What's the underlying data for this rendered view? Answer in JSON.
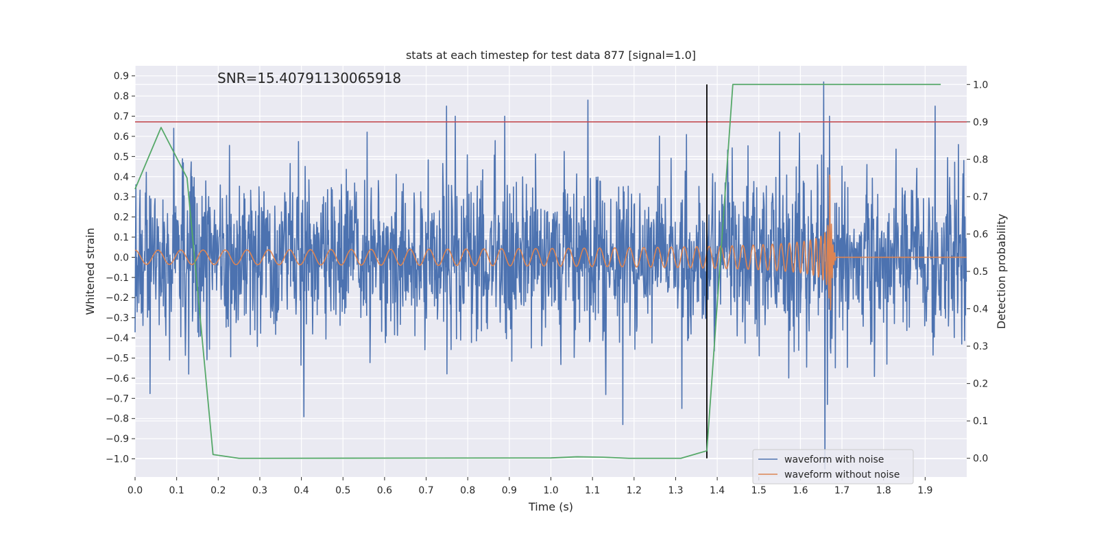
{
  "chart_data": {
    "type": "line",
    "title": "stats at each timestep for test data 877 [signal=1.0]",
    "xlabel": "Time (s)",
    "ylabel": "Whitened strain",
    "y2label": "Detection probability",
    "annotation": "SNR=15.40791130065918",
    "xlim": [
      0.0,
      2.0
    ],
    "ylim": [
      -1.09,
      0.95
    ],
    "y2lim": [
      -0.05,
      1.05
    ],
    "x_ticks": [
      0.0,
      0.1,
      0.2,
      0.3,
      0.4,
      0.5,
      0.6,
      0.7,
      0.8,
      0.9,
      1.0,
      1.1,
      1.2,
      1.3,
      1.4,
      1.5,
      1.6,
      1.7,
      1.8,
      1.9
    ],
    "x_tick_labels": [
      "0.0",
      "0.1",
      "0.2",
      "0.3",
      "0.4",
      "0.5",
      "0.6",
      "0.7",
      "0.8",
      "0.9",
      "1.0",
      "1.1",
      "1.2",
      "1.3",
      "1.4",
      "1.5",
      "1.6",
      "1.7",
      "1.8",
      "1.9"
    ],
    "y_ticks": [
      0.9,
      0.8,
      0.7,
      0.6,
      0.5,
      0.4,
      0.3,
      0.2,
      0.1,
      0.0,
      -0.1,
      -0.2,
      -0.3,
      -0.4,
      -0.5,
      -0.6,
      -0.7,
      -0.8,
      -0.9,
      -1.0
    ],
    "y_tick_labels": [
      "0.9",
      "0.8",
      "0.7",
      "0.6",
      "0.5",
      "0.4",
      "0.3",
      "0.2",
      "0.1",
      "0.0",
      "−0.1",
      "−0.2",
      "−0.3",
      "−0.4",
      "−0.5",
      "−0.6",
      "−0.7",
      "−0.8",
      "−0.9",
      "−1.0"
    ],
    "y2_ticks": [
      1.0,
      0.9,
      0.8,
      0.7,
      0.6,
      0.5,
      0.4,
      0.3,
      0.2,
      0.1,
      0.0
    ],
    "y2_tick_labels": [
      "1.0",
      "0.9",
      "0.8",
      "0.7",
      "0.6",
      "0.5",
      "0.4",
      "0.3",
      "0.2",
      "0.1",
      "0.0"
    ],
    "grid": true,
    "legend_position": "lower-right",
    "legend": [
      {
        "label": "waveform with noise",
        "color": "#4c72b0"
      },
      {
        "label": "waveform without noise",
        "color": "#dd8452"
      }
    ],
    "threshold": {
      "axis": "y2",
      "value": 0.9,
      "color": "#c44e52"
    },
    "vline": {
      "x": 1.375,
      "y2_from": 0.0,
      "y2_to": 1.0,
      "color": "#000000"
    },
    "detection_probability": {
      "color": "#55a868",
      "x": [
        0.0,
        0.0625,
        0.125,
        0.1875,
        0.25,
        0.3125,
        1.0,
        1.0625,
        1.125,
        1.1875,
        1.25,
        1.3125,
        1.375,
        1.4375,
        1.5,
        1.9375
      ],
      "y": [
        0.72,
        0.885,
        0.75,
        0.01,
        0.0,
        0.0,
        0.001,
        0.004,
        0.003,
        0.0,
        0.0,
        0.0,
        0.02,
        1.0,
        1.0,
        1.0
      ]
    },
    "series": [
      {
        "name": "waveform with noise",
        "color": "#4c72b0",
        "axis": "y",
        "model": "noise_plus_signal",
        "noise_std": 0.2,
        "noise_peaks": [
          {
            "x": 0.093,
            "y": 0.64
          },
          {
            "x": 0.749,
            "y": 0.75
          },
          {
            "x": 1.089,
            "y": 0.78
          },
          {
            "x": 1.656,
            "y": 0.87
          },
          {
            "x": 1.924,
            "y": 0.75
          },
          {
            "x": 1.659,
            "y": -1.05
          },
          {
            "x": 1.315,
            "y": -0.75
          },
          {
            "x": 1.665,
            "y": -0.73
          }
        ]
      },
      {
        "name": "waveform without noise",
        "color": "#dd8452",
        "axis": "y",
        "model": "chirp",
        "chirp_start_freq_hz": 18,
        "chirp_start_amp": 0.035,
        "merger_time": 1.67,
        "merger_amp": 0.52,
        "ringdown_end": 1.685,
        "after_merger": 0.0
      }
    ]
  }
}
